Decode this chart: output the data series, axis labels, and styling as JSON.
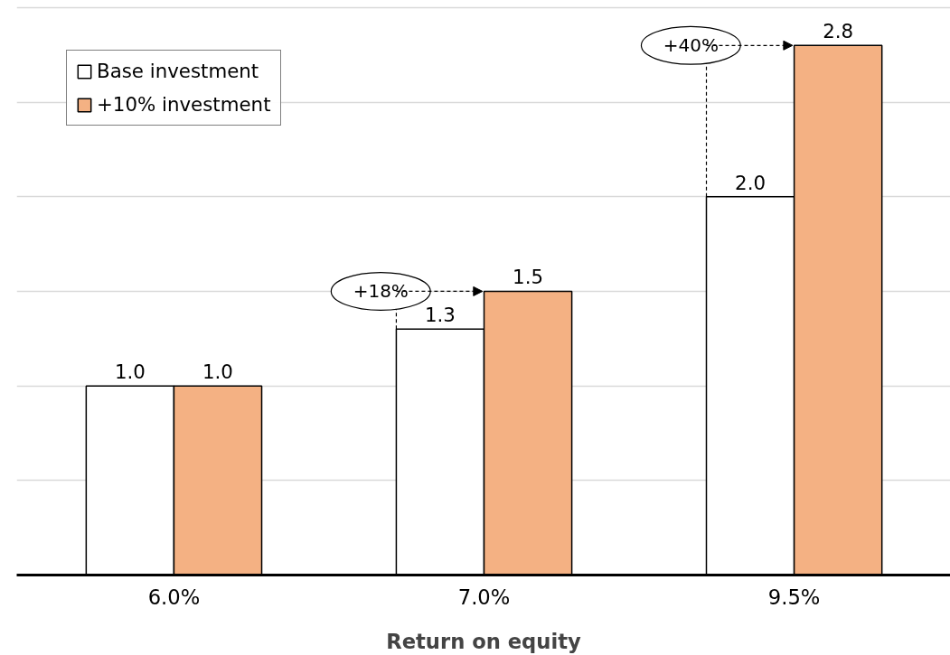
{
  "chart_data": {
    "type": "bar",
    "xlabel": "Return on equity",
    "categories": [
      "6.0%",
      "7.0%",
      "9.5%"
    ],
    "series": [
      {
        "name": "Base investment",
        "color": "#ffffff",
        "values": [
          1.0,
          1.3,
          2.0
        ],
        "value_labels": [
          "1.0",
          "1.3",
          "2.0"
        ]
      },
      {
        "name": "+10% investment",
        "color": "#f4b183",
        "values": [
          1.0,
          1.5,
          2.8
        ],
        "value_labels": [
          "1.0",
          "1.5",
          "2.8"
        ]
      }
    ],
    "yticks": [
      {
        "value": 0.5,
        "label": null
      },
      {
        "value": 1.0,
        "label": null
      },
      {
        "value": 1.5,
        "label": null
      },
      {
        "value": 2.0,
        "label": null
      },
      {
        "value": 2.5,
        "label": null
      },
      {
        "value": 3.0,
        "label": null
      }
    ],
    "tick_labels": "x",
    "grid": "y",
    "legend": "top left",
    "annotations": [
      {
        "text": "+18%",
        "x": "7.0%",
        "y": 1.5
      },
      {
        "text": "+40%",
        "x": "9.5%",
        "y": 2.8
      }
    ]
  }
}
